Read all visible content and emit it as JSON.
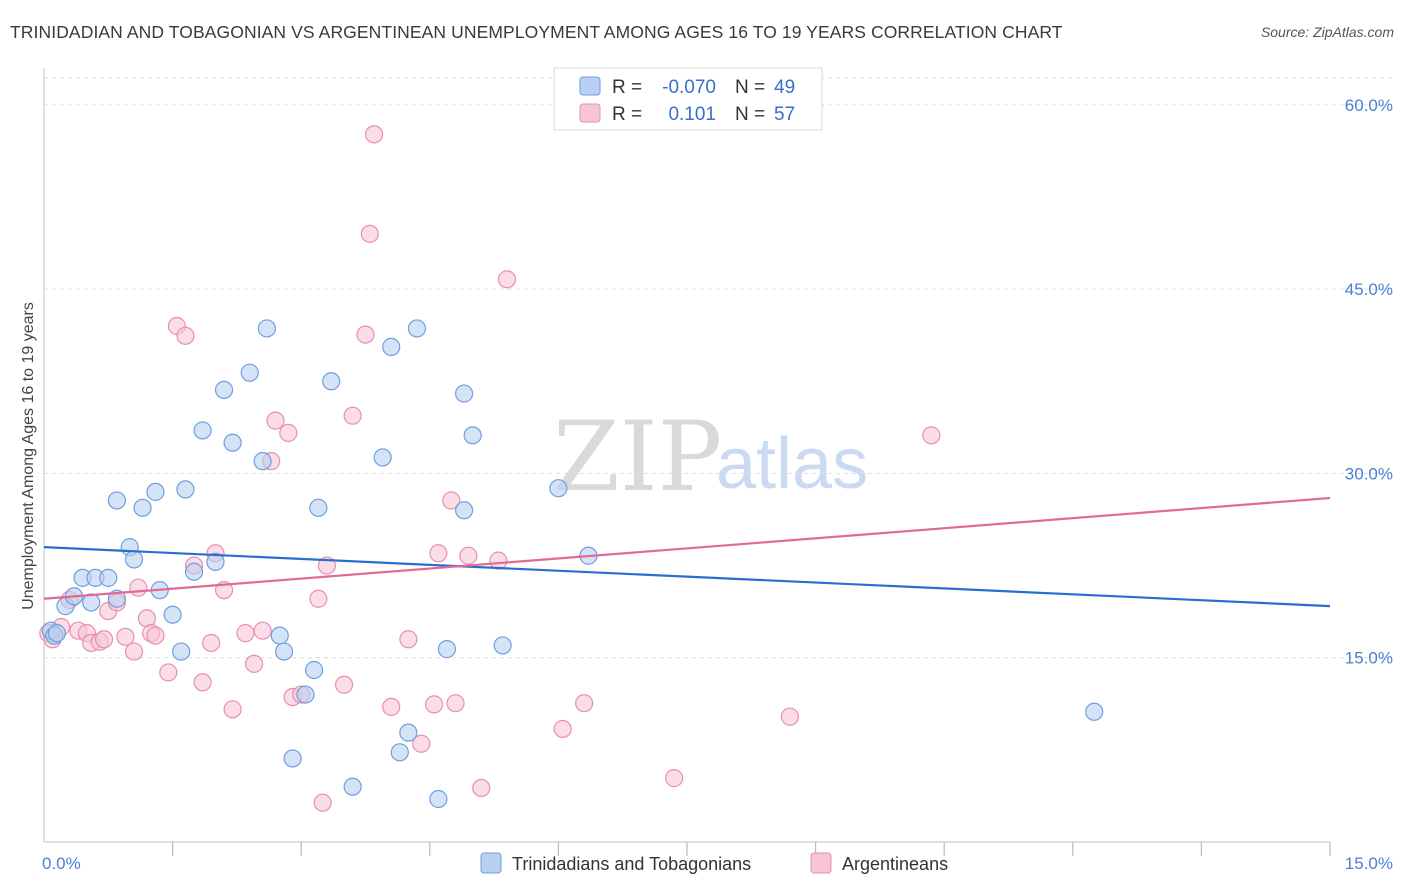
{
  "header": {
    "title": "TRINIDADIAN AND TOBAGONIAN VS ARGENTINEAN UNEMPLOYMENT AMONG AGES 16 TO 19 YEARS CORRELATION CHART",
    "source": "Source: ZipAtlas.com"
  },
  "watermark": {
    "zip": "ZIP",
    "atlas": "atlas"
  },
  "colors": {
    "blue_fill": "#b9d0f2",
    "blue_stroke": "#6f9ee0",
    "blue_line": "#2a6fcf",
    "pink_fill": "#f7c6d6",
    "pink_stroke": "#e98fad",
    "pink_line": "#e06a97",
    "grid": "#dddddd",
    "tick_text": "#4a7fd1"
  },
  "legend": {
    "rows": [
      {
        "r_label": "R =",
        "r_value": "-0.070",
        "n_label": "N =",
        "n_value": "49"
      },
      {
        "r_label": "R =",
        "r_value": "0.101",
        "n_label": "N =",
        "n_value": "57"
      }
    ]
  },
  "chart_data": {
    "type": "scatter",
    "title": "TRINIDADIAN AND TOBAGONIAN VS ARGENTINEAN UNEMPLOYMENT AMONG AGES 16 TO 19 YEARS CORRELATION CHART",
    "xlabel": "",
    "ylabel": "Unemployment Among Ages 16 to 19 years",
    "xlim": [
      0,
      15
    ],
    "ylim": [
      0,
      63
    ],
    "x_tick_labels": [
      "0.0%",
      "15.0%"
    ],
    "y_ticks": [
      15,
      30,
      45,
      60
    ],
    "y_tick_labels": [
      "15.0%",
      "30.0%",
      "45.0%",
      "60.0%"
    ],
    "grid": true,
    "series": [
      {
        "name": "Trinidadians and Tobagonians",
        "color": "blue",
        "trend": {
          "x": [
            0,
            15
          ],
          "y": [
            24.0,
            19.2
          ]
        },
        "points": [
          [
            0.08,
            17.2
          ],
          [
            0.12,
            16.8
          ],
          [
            0.25,
            19.2
          ],
          [
            0.35,
            20.0
          ],
          [
            0.45,
            21.5
          ],
          [
            0.55,
            19.5
          ],
          [
            0.6,
            21.5
          ],
          [
            0.75,
            21.5
          ],
          [
            0.85,
            19.8
          ],
          [
            0.85,
            27.8
          ],
          [
            1.0,
            24.0
          ],
          [
            1.05,
            23.0
          ],
          [
            1.15,
            27.2
          ],
          [
            1.3,
            28.5
          ],
          [
            1.35,
            20.5
          ],
          [
            1.5,
            18.5
          ],
          [
            1.6,
            15.5
          ],
          [
            1.65,
            28.7
          ],
          [
            1.75,
            22.0
          ],
          [
            1.85,
            33.5
          ],
          [
            2.0,
            22.8
          ],
          [
            2.1,
            36.8
          ],
          [
            2.2,
            32.5
          ],
          [
            2.4,
            38.2
          ],
          [
            2.55,
            31.0
          ],
          [
            2.6,
            41.8
          ],
          [
            2.75,
            16.8
          ],
          [
            2.8,
            15.5
          ],
          [
            2.9,
            6.8
          ],
          [
            3.05,
            12.0
          ],
          [
            3.15,
            14.0
          ],
          [
            3.2,
            27.2
          ],
          [
            3.35,
            37.5
          ],
          [
            3.6,
            4.5
          ],
          [
            3.95,
            31.3
          ],
          [
            4.05,
            40.3
          ],
          [
            4.15,
            7.3
          ],
          [
            4.25,
            8.9
          ],
          [
            4.35,
            41.8
          ],
          [
            4.6,
            3.5
          ],
          [
            4.7,
            15.7
          ],
          [
            4.9,
            27.0
          ],
          [
            4.9,
            36.5
          ],
          [
            5.0,
            33.1
          ],
          [
            5.35,
            16.0
          ],
          [
            6.0,
            28.8
          ],
          [
            6.35,
            23.3
          ],
          [
            12.25,
            10.6
          ],
          [
            0.15,
            17.0
          ]
        ]
      },
      {
        "name": "Argentineans",
        "color": "pink",
        "trend": {
          "x": [
            0,
            15
          ],
          "y": [
            19.8,
            28.0
          ]
        },
        "points": [
          [
            0.05,
            17.0
          ],
          [
            0.1,
            16.5
          ],
          [
            0.2,
            17.5
          ],
          [
            0.3,
            19.7
          ],
          [
            0.4,
            17.2
          ],
          [
            0.5,
            17.0
          ],
          [
            0.55,
            16.2
          ],
          [
            0.65,
            16.3
          ],
          [
            0.7,
            16.5
          ],
          [
            0.75,
            18.8
          ],
          [
            0.85,
            19.5
          ],
          [
            0.95,
            16.7
          ],
          [
            1.05,
            15.5
          ],
          [
            1.1,
            20.7
          ],
          [
            1.2,
            18.2
          ],
          [
            1.25,
            17.0
          ],
          [
            1.3,
            16.8
          ],
          [
            1.45,
            13.8
          ],
          [
            1.55,
            42.0
          ],
          [
            1.65,
            41.2
          ],
          [
            1.75,
            22.5
          ],
          [
            1.85,
            13.0
          ],
          [
            1.95,
            16.2
          ],
          [
            2.0,
            23.5
          ],
          [
            2.1,
            20.5
          ],
          [
            2.2,
            10.8
          ],
          [
            2.35,
            17.0
          ],
          [
            2.45,
            14.5
          ],
          [
            2.55,
            17.2
          ],
          [
            2.65,
            31.0
          ],
          [
            2.7,
            34.3
          ],
          [
            2.85,
            33.3
          ],
          [
            2.9,
            11.8
          ],
          [
            3.0,
            12.0
          ],
          [
            3.2,
            19.8
          ],
          [
            3.25,
            3.2
          ],
          [
            3.3,
            22.5
          ],
          [
            3.5,
            12.8
          ],
          [
            3.6,
            34.7
          ],
          [
            3.75,
            41.3
          ],
          [
            3.8,
            49.5
          ],
          [
            3.85,
            57.6
          ],
          [
            4.05,
            11.0
          ],
          [
            4.25,
            16.5
          ],
          [
            4.4,
            8.0
          ],
          [
            4.55,
            11.2
          ],
          [
            4.6,
            23.5
          ],
          [
            4.75,
            27.8
          ],
          [
            4.8,
            11.3
          ],
          [
            4.95,
            23.3
          ],
          [
            5.1,
            4.4
          ],
          [
            5.3,
            22.9
          ],
          [
            5.4,
            45.8
          ],
          [
            6.05,
            9.2
          ],
          [
            6.3,
            11.3
          ],
          [
            7.35,
            5.2
          ],
          [
            8.7,
            10.2
          ],
          [
            10.35,
            33.1
          ]
        ]
      }
    ]
  }
}
